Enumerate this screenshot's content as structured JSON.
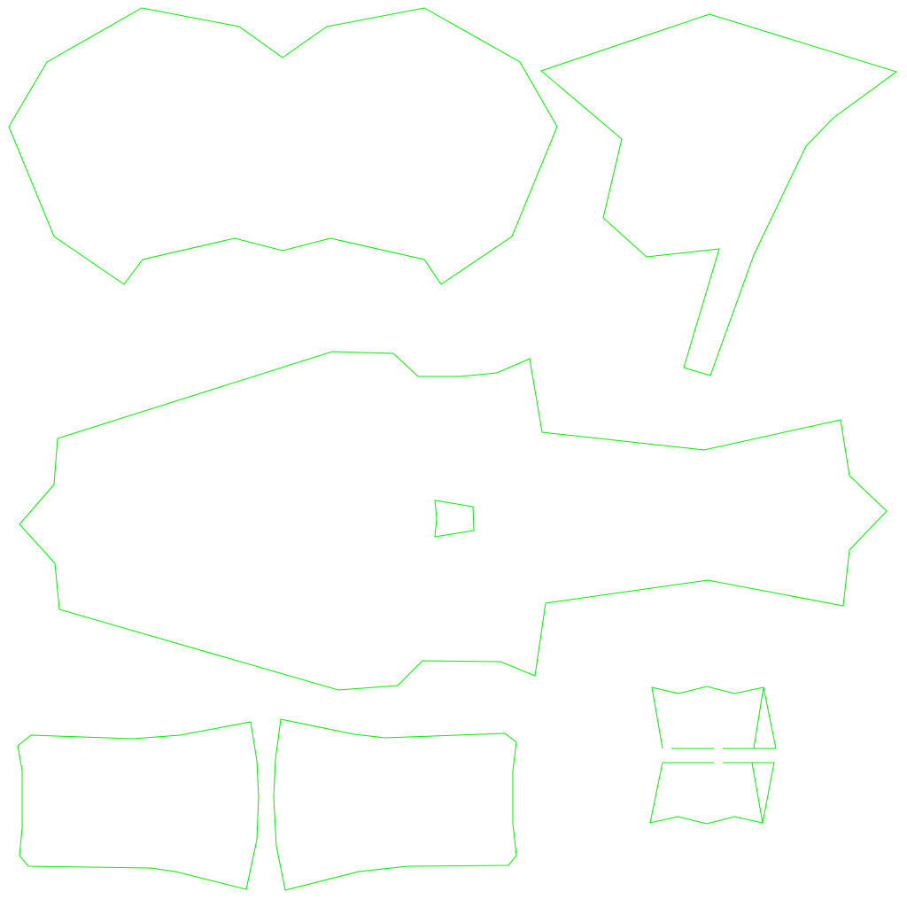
{
  "diagram": {
    "type": "uv-layout-wireframe",
    "background_color": "#ffffff",
    "stroke_color": "#00ee00",
    "islands": [
      "top-body-panel",
      "top-right-wing-panel",
      "center-main-panel",
      "center-small-patch",
      "bottom-left-panel",
      "bottom-middle-panel",
      "bottom-right-strip-upper",
      "bottom-right-strip-lower"
    ]
  }
}
